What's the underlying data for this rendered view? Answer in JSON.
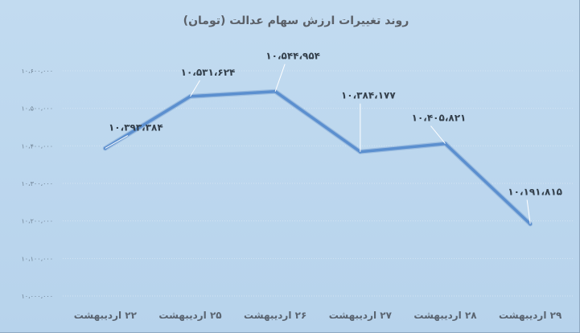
{
  "chart_data": {
    "type": "line",
    "title": "روند تغییرات ارزش سهام عدالت (تومان)",
    "categories": [
      "۲۲ اردیبهشت",
      "۲۵ اردیبهشت",
      "۲۶ اردیبهشت",
      "۲۷ اردیبهشت",
      "۲۸ اردیبهشت",
      "۲۹ اردیبهشت"
    ],
    "values": [
      10393384,
      10531624,
      10544954,
      10384177,
      10405821,
      10191815
    ],
    "data_labels": [
      "۱۰،۳۹۳،۳۸۴",
      "۱۰،۵۳۱،۶۲۴",
      "۱۰،۵۴۴،۹۵۴",
      "۱۰،۳۸۴،۱۷۷",
      "۱۰،۴۰۵،۸۲۱",
      "۱۰،۱۹۱،۸۱۵"
    ],
    "y_ticks": [
      10000000,
      10100000,
      10200000,
      10300000,
      10400000,
      10500000,
      10600000
    ],
    "y_tick_labels": [
      "۱۰،۰۰۰،۰۰۰",
      "۱۰،۱۰۰،۰۰۰",
      "۱۰،۲۰۰،۰۰۰",
      "۱۰،۳۰۰،۰۰۰",
      "۱۰،۴۰۰،۰۰۰",
      "۱۰،۵۰۰،۰۰۰",
      "۱۰،۶۰۰،۰۰۰"
    ],
    "ylim": [
      10000000,
      10600000
    ],
    "xlabel": "",
    "ylabel": "",
    "grid": true,
    "legend": "none",
    "line_color": "#5b8fcf"
  }
}
